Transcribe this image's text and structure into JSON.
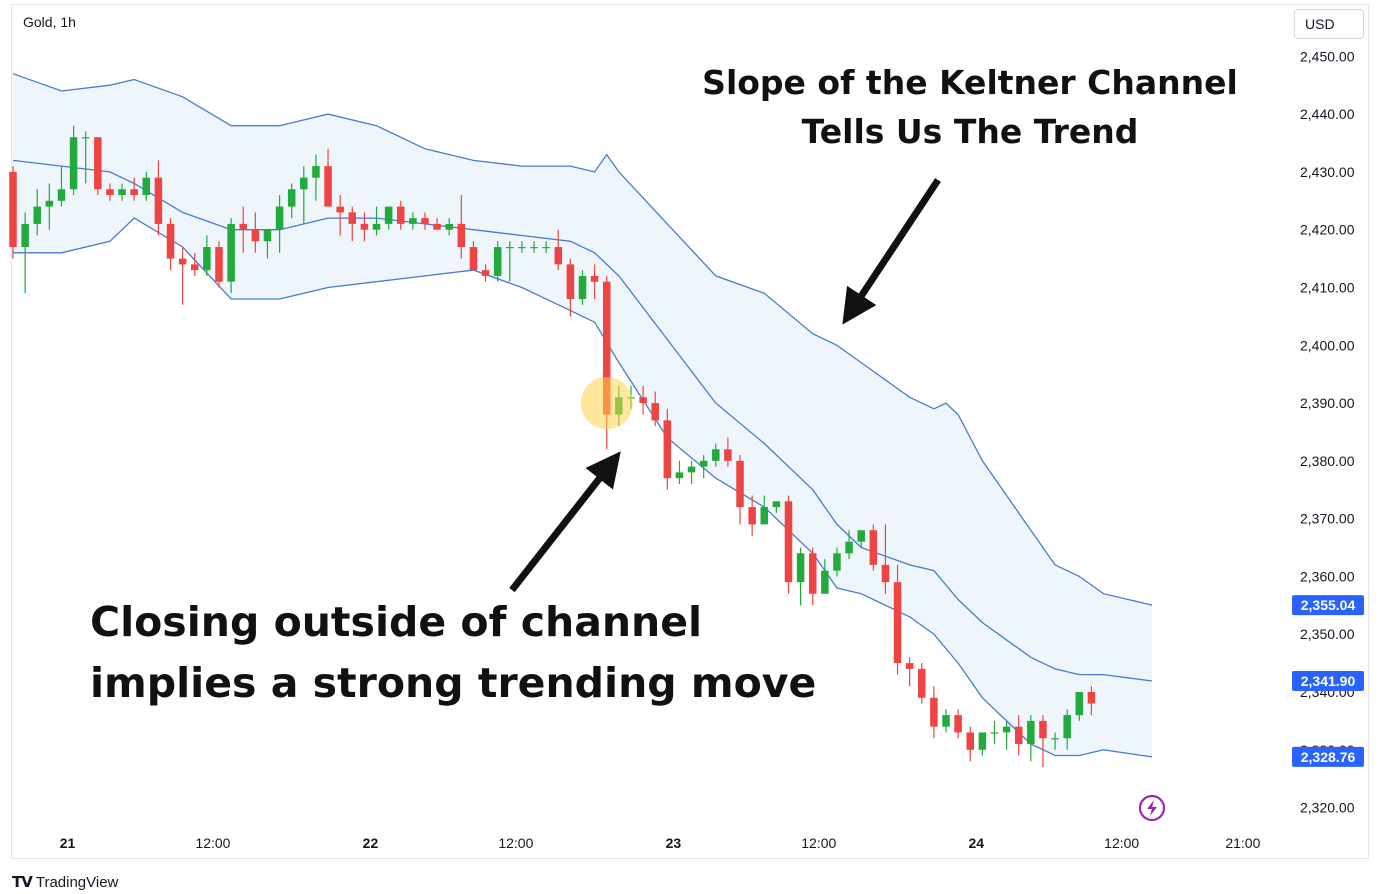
{
  "header": {
    "symbol": "Gold, 1h",
    "currency": "USD"
  },
  "footer": {
    "brand_text": "TradingView",
    "brand_logo": "TV"
  },
  "colors": {
    "up": "#22ab3c",
    "down": "#ef4444",
    "band": "#4a7bd0",
    "band_fill": "#eef5fb",
    "label_bg": "#2962ff"
  },
  "annotations": {
    "top_line1": "Slope of the Keltner Channel",
    "top_line2": "Tells Us The Trend",
    "bottom_line1": "Closing outside of channel",
    "bottom_line2": "implies a strong trending move"
  },
  "chart_data": {
    "type": "candlestick",
    "title": "Gold, 1h",
    "indicator": "Keltner Channel",
    "xlabel": "",
    "ylabel": "",
    "ylim": [
      2317.5,
      2457.5
    ],
    "xlim": [
      0,
      94
    ],
    "y_ticks": [
      "2,450.00",
      "2,440.00",
      "2,430.00",
      "2,420.00",
      "2,410.00",
      "2,400.00",
      "2,390.00",
      "2,380.00",
      "2,370.00",
      "2,360.00",
      "2,350.00",
      "2,340.00",
      "2,330.00",
      "2,320.00"
    ],
    "y_tick_values": [
      2450,
      2440,
      2430,
      2420,
      2410,
      2400,
      2390,
      2380,
      2370,
      2360,
      2350,
      2340,
      2330,
      2320
    ],
    "x_ticks": [
      {
        "label": "21",
        "bar": 4.5,
        "bold": true
      },
      {
        "label": "12:00",
        "bar": 16.5,
        "bold": false
      },
      {
        "label": "22",
        "bar": 29.5,
        "bold": true
      },
      {
        "label": "12:00",
        "bar": 41.5,
        "bold": false
      },
      {
        "label": "23",
        "bar": 54.5,
        "bold": true
      },
      {
        "label": "12:00",
        "bar": 66.5,
        "bold": false
      },
      {
        "label": "24",
        "bar": 79.5,
        "bold": true
      },
      {
        "label": "12:00",
        "bar": 91.5,
        "bold": false
      },
      {
        "label": "21:00",
        "bar": 101.5,
        "bold": false
      }
    ],
    "price_labels": [
      {
        "label": "2,355.04",
        "value": 2355.04
      },
      {
        "label": "2,341.90",
        "value": 2341.9
      },
      {
        "label": "2,328.76",
        "value": 2328.76
      }
    ],
    "ohlc": [
      [
        2430,
        2431,
        2415,
        2417
      ],
      [
        2417,
        2423,
        2409,
        2421
      ],
      [
        2421,
        2427,
        2419,
        2424
      ],
      [
        2424,
        2428,
        2420,
        2425
      ],
      [
        2425,
        2431,
        2424,
        2427
      ],
      [
        2427,
        2438,
        2426,
        2436
      ],
      [
        2436,
        2437,
        2428,
        2436
      ],
      [
        2436,
        2436,
        2426,
        2427
      ],
      [
        2427,
        2428,
        2425,
        2426
      ],
      [
        2426,
        2428,
        2425,
        2427
      ],
      [
        2427,
        2429,
        2425,
        2426
      ],
      [
        2426,
        2430,
        2425,
        2429
      ],
      [
        2429,
        2432,
        2419,
        2421
      ],
      [
        2421,
        2422,
        2413,
        2415
      ],
      [
        2415,
        2417,
        2407,
        2414
      ],
      [
        2414,
        2416,
        2412,
        2413
      ],
      [
        2413,
        2419,
        2412,
        2417
      ],
      [
        2417,
        2418,
        2410,
        2411
      ],
      [
        2411,
        2422,
        2409,
        2421
      ],
      [
        2421,
        2424,
        2416,
        2420
      ],
      [
        2420,
        2423,
        2416,
        2418
      ],
      [
        2418,
        2420,
        2415,
        2420
      ],
      [
        2420,
        2426,
        2416,
        2424
      ],
      [
        2424,
        2428,
        2422,
        2427
      ],
      [
        2427,
        2431,
        2421,
        2429
      ],
      [
        2429,
        2433,
        2425,
        2431
      ],
      [
        2431,
        2434,
        2424,
        2424
      ],
      [
        2424,
        2426,
        2419,
        2423
      ],
      [
        2423,
        2424,
        2418,
        2421
      ],
      [
        2421,
        2423,
        2418,
        2420
      ],
      [
        2420,
        2424,
        2419,
        2421
      ],
      [
        2421,
        2424,
        2420,
        2424
      ],
      [
        2424,
        2425,
        2420,
        2421
      ],
      [
        2421,
        2423,
        2420,
        2422
      ],
      [
        2422,
        2423,
        2420,
        2421
      ],
      [
        2421,
        2422,
        2420,
        2420
      ],
      [
        2420,
        2422,
        2419,
        2421
      ],
      [
        2421,
        2426,
        2415,
        2417
      ],
      [
        2417,
        2418,
        2413,
        2413
      ],
      [
        2413,
        2414,
        2411,
        2412
      ],
      [
        2412,
        2418,
        2411,
        2417
      ],
      [
        2417,
        2418,
        2411,
        2417
      ],
      [
        2417,
        2418,
        2416,
        2417
      ],
      [
        2417,
        2418,
        2416,
        2417
      ],
      [
        2417,
        2418,
        2416,
        2417
      ],
      [
        2417,
        2420,
        2413,
        2414
      ],
      [
        2414,
        2415,
        2405,
        2408
      ],
      [
        2408,
        2413,
        2407,
        2412
      ],
      [
        2412,
        2414,
        2408,
        2411
      ],
      [
        2411,
        2412,
        2382,
        2388
      ],
      [
        2388,
        2393,
        2386,
        2391
      ],
      [
        2391,
        2393,
        2389,
        2391
      ],
      [
        2391,
        2393,
        2388,
        2390
      ],
      [
        2390,
        2392,
        2386,
        2387
      ],
      [
        2387,
        2389,
        2375,
        2377
      ],
      [
        2377,
        2380,
        2376,
        2378
      ],
      [
        2378,
        2380,
        2376,
        2379
      ],
      [
        2379,
        2381,
        2377,
        2380
      ],
      [
        2380,
        2383,
        2379,
        2382
      ],
      [
        2382,
        2384,
        2379,
        2380
      ],
      [
        2380,
        2381,
        2369,
        2372
      ],
      [
        2372,
        2374,
        2367,
        2369
      ],
      [
        2369,
        2374,
        2369,
        2372
      ],
      [
        2372,
        2373,
        2371,
        2373
      ],
      [
        2373,
        2374,
        2357,
        2359
      ],
      [
        2359,
        2365,
        2355,
        2364
      ],
      [
        2364,
        2365,
        2355,
        2357
      ],
      [
        2357,
        2363,
        2357,
        2361
      ],
      [
        2361,
        2365,
        2360,
        2364
      ],
      [
        2364,
        2368,
        2363,
        2366
      ],
      [
        2366,
        2368,
        2365,
        2368
      ],
      [
        2368,
        2369,
        2361,
        2362
      ],
      [
        2362,
        2369,
        2357,
        2359
      ],
      [
        2359,
        2362,
        2343,
        2345
      ],
      [
        2345,
        2346,
        2341,
        2344
      ],
      [
        2344,
        2345,
        2338,
        2339
      ],
      [
        2339,
        2341,
        2332,
        2334
      ],
      [
        2334,
        2337,
        2333,
        2336
      ],
      [
        2336,
        2337,
        2332,
        2333
      ],
      [
        2333,
        2334,
        2328,
        2330
      ],
      [
        2330,
        2333,
        2329,
        2333
      ],
      [
        2333,
        2335,
        2331,
        2333
      ],
      [
        2333,
        2335,
        2330,
        2334
      ],
      [
        2334,
        2336,
        2329,
        2331
      ],
      [
        2331,
        2336,
        2328,
        2335
      ],
      [
        2335,
        2336,
        2327,
        2332
      ],
      [
        2332,
        2333,
        2330,
        2332
      ],
      [
        2332,
        2337,
        2330,
        2336
      ],
      [
        2336,
        2340,
        2335,
        2340
      ],
      [
        2340,
        2341,
        2336,
        2338
      ]
    ],
    "keltner_upper": [
      [
        0,
        2447
      ],
      [
        4,
        2444
      ],
      [
        8,
        2445
      ],
      [
        10,
        2446
      ],
      [
        14,
        2443
      ],
      [
        18,
        2438
      ],
      [
        22,
        2438
      ],
      [
        26,
        2440
      ],
      [
        30,
        2438
      ],
      [
        34,
        2434
      ],
      [
        38,
        2432
      ],
      [
        42,
        2431
      ],
      [
        46,
        2431
      ],
      [
        48,
        2430
      ],
      [
        49,
        2433
      ],
      [
        50,
        2430
      ],
      [
        54,
        2421
      ],
      [
        58,
        2412
      ],
      [
        62,
        2409
      ],
      [
        66,
        2402
      ],
      [
        68,
        2400
      ],
      [
        70,
        2397
      ],
      [
        74,
        2391
      ],
      [
        76,
        2389
      ],
      [
        77,
        2390
      ],
      [
        78,
        2388
      ],
      [
        80,
        2380
      ],
      [
        84,
        2368
      ],
      [
        86,
        2362
      ],
      [
        88,
        2360
      ],
      [
        90,
        2357
      ],
      [
        94,
        2355.04
      ]
    ],
    "keltner_middle": [
      [
        0,
        2432
      ],
      [
        4,
        2431
      ],
      [
        8,
        2430
      ],
      [
        10,
        2428
      ],
      [
        14,
        2423
      ],
      [
        18,
        2420
      ],
      [
        22,
        2420
      ],
      [
        26,
        2422
      ],
      [
        30,
        2422
      ],
      [
        34,
        2421
      ],
      [
        38,
        2420
      ],
      [
        42,
        2419
      ],
      [
        46,
        2418
      ],
      [
        48,
        2416
      ],
      [
        50,
        2412
      ],
      [
        54,
        2401
      ],
      [
        58,
        2390
      ],
      [
        62,
        2383
      ],
      [
        66,
        2375
      ],
      [
        68,
        2369
      ],
      [
        70,
        2365
      ],
      [
        74,
        2362
      ],
      [
        76,
        2361
      ],
      [
        78,
        2356
      ],
      [
        80,
        2352
      ],
      [
        84,
        2346
      ],
      [
        86,
        2344
      ],
      [
        88,
        2343
      ],
      [
        90,
        2343
      ],
      [
        94,
        2341.9
      ]
    ],
    "keltner_lower": [
      [
        0,
        2416
      ],
      [
        4,
        2416
      ],
      [
        8,
        2418
      ],
      [
        10,
        2422
      ],
      [
        14,
        2417
      ],
      [
        18,
        2408
      ],
      [
        22,
        2408
      ],
      [
        26,
        2410
      ],
      [
        30,
        2411
      ],
      [
        34,
        2412
      ],
      [
        38,
        2413
      ],
      [
        42,
        2410
      ],
      [
        46,
        2406
      ],
      [
        48,
        2404
      ],
      [
        50,
        2397
      ],
      [
        54,
        2384
      ],
      [
        58,
        2377
      ],
      [
        62,
        2372
      ],
      [
        66,
        2364
      ],
      [
        68,
        2358
      ],
      [
        70,
        2357
      ],
      [
        74,
        2353
      ],
      [
        76,
        2350
      ],
      [
        78,
        2345
      ],
      [
        80,
        2339
      ],
      [
        84,
        2331
      ],
      [
        86,
        2329
      ],
      [
        88,
        2329
      ],
      [
        90,
        2330
      ],
      [
        94,
        2328.76
      ]
    ],
    "highlight": {
      "bar": 49,
      "value": 2390
    }
  }
}
